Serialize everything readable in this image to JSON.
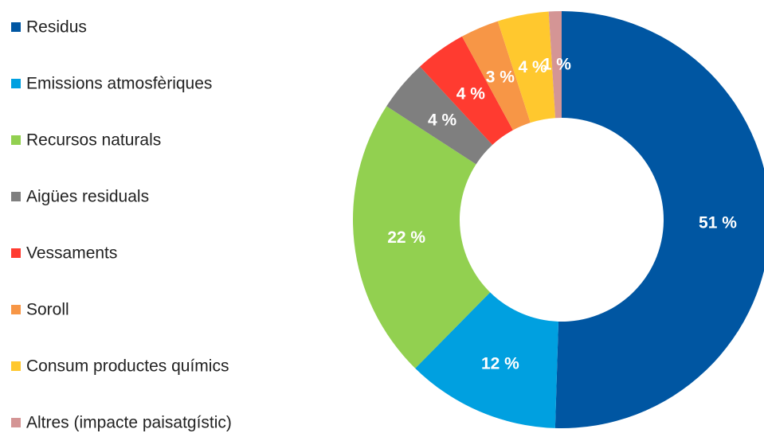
{
  "chart_data": {
    "type": "donut",
    "categories": [
      "Residus",
      "Emissions atmosfèriques",
      "Recursos naturals",
      "Aigües residuals",
      "Vessaments",
      "Soroll",
      "Consum productes químics",
      "Altres (impacte paisatgístic)"
    ],
    "values": [
      51,
      12,
      22,
      4,
      4,
      3,
      4,
      1
    ],
    "value_labels": [
      "51 %",
      "12 %",
      "22 %",
      "4 %",
      "4 %",
      "3 %",
      "4 %",
      "1 %"
    ],
    "colors": [
      "#0056a2",
      "#00a0e0",
      "#92d050",
      "#7f7f7f",
      "#ff3b30",
      "#f79646",
      "#ffc82e",
      "#d49595"
    ],
    "legend": "left"
  }
}
